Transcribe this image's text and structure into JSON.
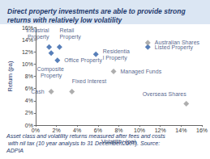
{
  "chart_data": {
    "type": "scatter",
    "title": "Direct property investments are able to provide strong returns with relatively low volatility",
    "annotation": "Asset class and volatility returns measured after fees and costs with nil tax (10 year analysis to 31 December 2007). Source: ADPIA",
    "xlabel": "Volatility (pa)",
    "ylabel": "Return (pa)",
    "labels": [
      "Industrial Property",
      "Retail Property",
      "Composite Property",
      "Office Property",
      "Residential Property",
      "Listed Property",
      "Australian Shares",
      "Managed Funds",
      "Fixed Interest",
      "Cash",
      "Overseas Shares"
    ],
    "x": [
      1.3,
      2.3,
      1.5,
      2.1,
      5.8,
      10.8,
      10.8,
      7.5,
      3.5,
      1.5,
      14.5
    ],
    "values": [
      12.8,
      12.8,
      11.8,
      10.6,
      11.6,
      12.8,
      13.5,
      8.8,
      5.5,
      5.5,
      3.5
    ],
    "colors": [
      "#2e5fa8",
      "#2e5fa8",
      "#2e5fa8",
      "#2e5fa8",
      "#2e5fa8",
      "#2e5fa8",
      "#9a9a9a",
      "#9a9a9a",
      "#9a9a9a",
      "#9a9a9a",
      "#9a9a9a"
    ],
    "marker": "diamond",
    "xlim": [
      0,
      16
    ],
    "ylim": [
      0,
      16
    ],
    "xticks": [
      {
        "value": 0,
        "label": "0%"
      },
      {
        "value": 2,
        "label": "2%"
      },
      {
        "value": 4,
        "label": "4%"
      },
      {
        "value": 6,
        "label": "6%"
      },
      {
        "value": 8,
        "label": "8%"
      },
      {
        "value": 10,
        "label": "10%"
      },
      {
        "value": 12,
        "label": "12%"
      },
      {
        "value": 14,
        "label": "14%"
      },
      {
        "value": 16,
        "label": "16%"
      }
    ],
    "yticks": [
      {
        "value": 0,
        "label": "0%"
      },
      {
        "value": 2,
        "label": "2%"
      },
      {
        "value": 4,
        "label": "4%"
      },
      {
        "value": 6,
        "label": "6%"
      },
      {
        "value": 8,
        "label": "8%"
      },
      {
        "value": 10,
        "label": "10%"
      },
      {
        "value": 12,
        "label": "12%"
      },
      {
        "value": 14,
        "label": "14%"
      },
      {
        "value": 16,
        "label": "16%"
      }
    ],
    "grid": false
  }
}
